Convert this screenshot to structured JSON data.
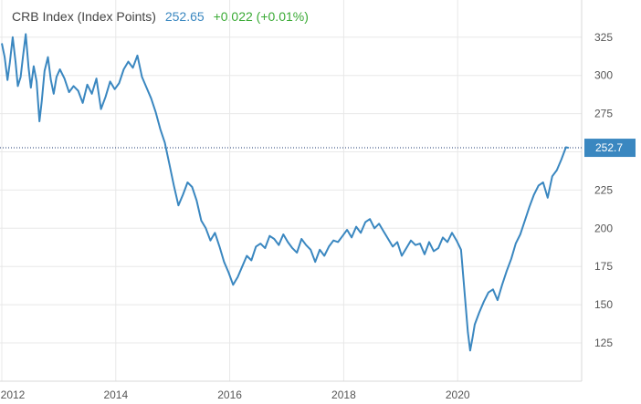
{
  "header": {
    "title": "CRB Index (Index Points)",
    "last_value": "252.65",
    "change": "+0.022 (+0.01%)"
  },
  "colors": {
    "series": "#3a87c0",
    "positive": "#3aaa35",
    "title": "#444444"
  },
  "chart_data": {
    "type": "line",
    "title": "CRB Index (Index Points)",
    "xlabel": "",
    "ylabel": "",
    "ylim": [
      100,
      340
    ],
    "xlim": [
      2012.0,
      2021.98
    ],
    "grid": true,
    "y_axis_side": "right",
    "x_ticks": [
      "2012",
      "2014",
      "2016",
      "2018",
      "2020"
    ],
    "y_ticks": [
      "325",
      "300",
      "275",
      "225",
      "200",
      "175",
      "150",
      "125"
    ],
    "last_label": "252.7",
    "last_value": 252.65,
    "series": [
      {
        "name": "CRB Index",
        "x": [
          2012.0,
          2012.05,
          2012.1,
          2012.14,
          2012.19,
          2012.24,
          2012.28,
          2012.33,
          2012.37,
          2012.42,
          2012.47,
          2012.51,
          2012.56,
          2012.61,
          2012.66,
          2012.7,
          2012.75,
          2012.81,
          2012.86,
          2012.91,
          2012.96,
          2013.02,
          2013.1,
          2013.18,
          2013.26,
          2013.34,
          2013.42,
          2013.5,
          2013.58,
          2013.66,
          2013.74,
          2013.82,
          2013.9,
          2013.98,
          2014.06,
          2014.14,
          2014.22,
          2014.3,
          2014.38,
          2014.46,
          2014.54,
          2014.62,
          2014.7,
          2014.78,
          2014.86,
          2014.94,
          2015.02,
          2015.1,
          2015.18,
          2015.26,
          2015.34,
          2015.42,
          2015.5,
          2015.58,
          2015.66,
          2015.74,
          2015.82,
          2015.9,
          2015.98,
          2016.06,
          2016.14,
          2016.22,
          2016.3,
          2016.38,
          2016.46,
          2016.54,
          2016.62,
          2016.7,
          2016.78,
          2016.86,
          2016.94,
          2017.02,
          2017.1,
          2017.18,
          2017.26,
          2017.34,
          2017.42,
          2017.5,
          2017.58,
          2017.66,
          2017.74,
          2017.82,
          2017.9,
          2017.98,
          2018.06,
          2018.14,
          2018.22,
          2018.3,
          2018.38,
          2018.46,
          2018.54,
          2018.62,
          2018.7,
          2018.78,
          2018.86,
          2018.94,
          2019.02,
          2019.1,
          2019.18,
          2019.26,
          2019.34,
          2019.42,
          2019.5,
          2019.58,
          2019.66,
          2019.74,
          2019.82,
          2019.9,
          2019.98,
          2020.06,
          2020.1,
          2020.14,
          2020.18,
          2020.22,
          2020.26,
          2020.3,
          2020.38,
          2020.46,
          2020.54,
          2020.62,
          2020.7,
          2020.78,
          2020.86,
          2020.94,
          2021.02,
          2021.1,
          2021.18,
          2021.26,
          2021.34,
          2021.42,
          2021.5,
          2021.58,
          2021.66,
          2021.74,
          2021.82,
          2021.9,
          2021.95
        ],
        "y": [
          321,
          312,
          297,
          308,
          325,
          309,
          293,
          299,
          312,
          327,
          305,
          292,
          306,
          296,
          270,
          283,
          303,
          312,
          297,
          288,
          299,
          304,
          298,
          289,
          293,
          290,
          282,
          294,
          288,
          298,
          278,
          286,
          296,
          291,
          295,
          304,
          309,
          305,
          313,
          299,
          292,
          285,
          276,
          265,
          256,
          242,
          228,
          215,
          222,
          230,
          227,
          218,
          205,
          200,
          192,
          197,
          188,
          178,
          171,
          163,
          168,
          175,
          182,
          179,
          188,
          190,
          187,
          195,
          193,
          189,
          196,
          191,
          187,
          184,
          193,
          189,
          186,
          178,
          186,
          182,
          188,
          192,
          191,
          195,
          199,
          194,
          201,
          197,
          204,
          206,
          200,
          203,
          198,
          193,
          188,
          191,
          182,
          187,
          192,
          189,
          190,
          183,
          191,
          185,
          187,
          194,
          191,
          197,
          192,
          186,
          168,
          150,
          132,
          120,
          128,
          137,
          145,
          152,
          158,
          160,
          153,
          163,
          172,
          180,
          190,
          196,
          205,
          214,
          222,
          228,
          230,
          220,
          234,
          238,
          245,
          253,
          252.65
        ]
      }
    ]
  }
}
